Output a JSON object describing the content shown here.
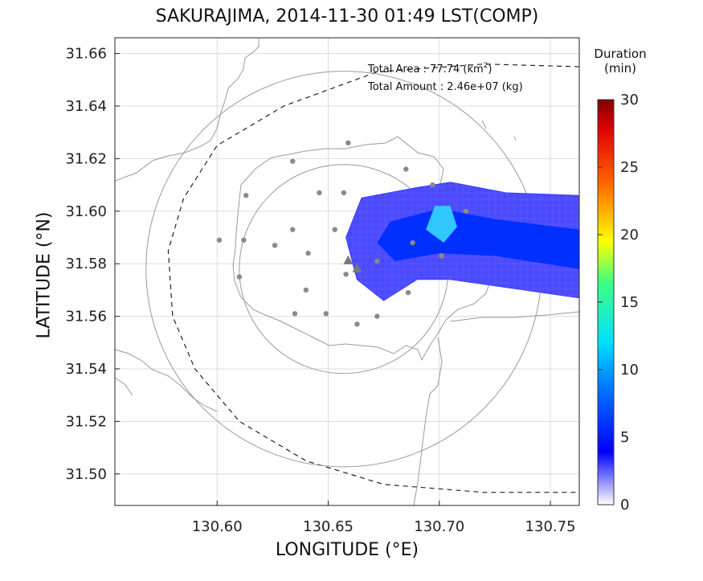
{
  "title": "SAKURAJIMA, 2014-11-30 01:49 LST(COMP)",
  "xlabel": "LONGITUDE (°E)",
  "ylabel": "LATITUDE (°N)",
  "colorbar": {
    "title_line1": "Duration",
    "title_line2": "(min)",
    "ticks": [
      "0",
      "5",
      "10",
      "15",
      "20",
      "25",
      "30"
    ]
  },
  "annotation": {
    "area": "Total Area  : 77.74 (km",
    "area_sup": "2",
    "area_close": ")",
    "amount": "Total Amount : 2.46e+07 (kg)"
  },
  "chart_data": {
    "type": "heatmap",
    "xlim": [
      130.554,
      130.763
    ],
    "ylim": [
      31.488,
      31.666
    ],
    "x_ticks": [
      130.6,
      130.65,
      130.7,
      130.75
    ],
    "x_tick_labels": [
      "130.60",
      "130.65",
      "130.70",
      "130.75"
    ],
    "y_ticks": [
      31.5,
      31.52,
      31.54,
      31.56,
      31.58,
      31.6,
      31.62,
      31.64,
      31.66
    ],
    "y_tick_labels": [
      "31.50",
      "31.52",
      "31.54",
      "31.56",
      "31.58",
      "31.60",
      "31.62",
      "31.64",
      "31.66"
    ],
    "grid": true,
    "colorbar_range": [
      0,
      30
    ],
    "plume": {
      "outline": [
        [
          130.665,
          31.605
        ],
        [
          130.69,
          31.609
        ],
        [
          130.705,
          31.611
        ],
        [
          130.73,
          31.607
        ],
        [
          130.763,
          31.606
        ],
        [
          130.763,
          31.567
        ],
        [
          130.73,
          31.571
        ],
        [
          130.705,
          31.574
        ],
        [
          130.69,
          31.574
        ],
        [
          130.675,
          31.566
        ],
        [
          130.663,
          31.574
        ],
        [
          130.658,
          31.59
        ]
      ],
      "mid_band": [
        [
          130.678,
          31.596
        ],
        [
          130.7,
          31.601
        ],
        [
          130.725,
          31.597
        ],
        [
          130.763,
          31.593
        ],
        [
          130.763,
          31.578
        ],
        [
          130.725,
          31.583
        ],
        [
          130.7,
          31.584
        ],
        [
          130.68,
          31.581
        ],
        [
          130.672,
          31.588
        ]
      ],
      "core": [
        [
          130.698,
          31.602
        ],
        [
          130.705,
          31.602
        ],
        [
          130.708,
          31.594
        ],
        [
          130.702,
          31.588
        ],
        [
          130.694,
          31.593
        ]
      ],
      "core_value_min": 10,
      "max_duration_min": 12
    },
    "stations": [
      [
        130.659,
        31.626
      ],
      [
        130.634,
        31.619
      ],
      [
        130.613,
        31.606
      ],
      [
        130.646,
        31.607
      ],
      [
        130.657,
        31.607
      ],
      [
        130.685,
        31.616
      ],
      [
        130.653,
        31.593
      ],
      [
        130.634,
        31.593
      ],
      [
        130.612,
        31.589
      ],
      [
        130.601,
        31.589
      ],
      [
        130.626,
        31.587
      ],
      [
        130.641,
        31.584
      ],
      [
        130.61,
        31.575
      ],
      [
        130.64,
        31.57
      ],
      [
        130.635,
        31.561
      ],
      [
        130.649,
        31.561
      ],
      [
        130.663,
        31.557
      ],
      [
        130.672,
        31.56
      ],
      [
        130.686,
        31.569
      ],
      [
        130.701,
        31.583
      ],
      [
        130.688,
        31.588
      ],
      [
        130.672,
        31.581
      ],
      [
        130.697,
        31.61
      ],
      [
        130.712,
        31.6
      ],
      [
        130.658,
        31.576
      ]
    ],
    "vents": [
      [
        130.659,
        31.581
      ],
      [
        130.663,
        31.578
      ]
    ],
    "rings": [
      {
        "center": [
          130.657,
          31.578
        ],
        "radius_deg": 0.047
      },
      {
        "center": [
          130.657,
          31.578
        ],
        "radius_deg": 0.089
      }
    ],
    "boundary_dashed": [
      [
        130.763,
        31.655
      ],
      [
        130.72,
        31.656
      ],
      [
        130.672,
        31.653
      ],
      [
        130.63,
        31.64
      ],
      [
        130.6,
        31.625
      ],
      [
        130.585,
        31.605
      ],
      [
        130.578,
        31.585
      ],
      [
        130.58,
        31.56
      ],
      [
        130.59,
        31.54
      ],
      [
        130.61,
        31.52
      ],
      [
        130.64,
        31.505
      ],
      [
        130.675,
        31.496
      ],
      [
        130.72,
        31.493
      ],
      [
        130.763,
        31.493
      ]
    ]
  }
}
